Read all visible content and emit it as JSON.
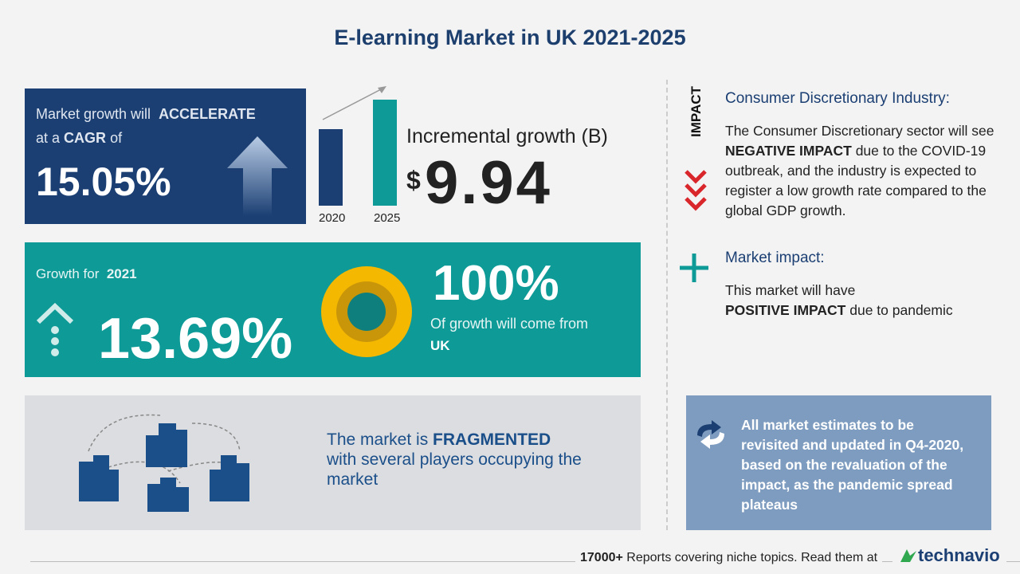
{
  "title": "E-learning Market in UK 2021-2025",
  "cagr_panel": {
    "line1": "Market growth will",
    "line1_bold": "ACCELERATE",
    "line2": "at a",
    "line2_bold": "CAGR",
    "line2_end": "of",
    "value": "15.05%"
  },
  "incremental": {
    "year_start": "2020",
    "year_end": "2025",
    "heading": "Incremental growth (B)",
    "currency": "$",
    "value": "9.94"
  },
  "growth_panel": {
    "label": "Growth for",
    "year": "2021",
    "value": "13.69%",
    "share": "100%",
    "share_text": "Of growth will come from",
    "region": "UK"
  },
  "fragmented": {
    "prefix": "The market is",
    "bold": "FRAGMENTED",
    "rest": "with several players occupying the market"
  },
  "impact": {
    "tag": "IMPACT",
    "heading": "Consumer Discretionary Industry:",
    "text_before": "The Consumer Discretionary sector will see",
    "bold": "NEGATIVE IMPACT",
    "text_after": "due to the COVID-19 outbreak, and the industry is expected to register a low growth rate compared to the global GDP growth."
  },
  "market_impact": {
    "heading": "Market impact:",
    "text_before": "This market will have",
    "bold": "POSITIVE IMPACT",
    "text_after": "due to pandemic"
  },
  "note": "All market estimates to be revisited and updated in Q4-2020, based on the revaluation of the impact, as the pandemic spread plateaus",
  "footer": {
    "count": "17000+",
    "text": "Reports covering niche topics. Read them at",
    "brand": "technavio"
  }
}
